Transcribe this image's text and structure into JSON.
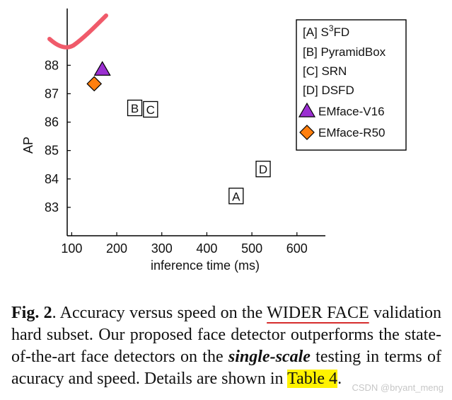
{
  "chart_data": {
    "type": "scatter",
    "xlabel": "inference time (ms)",
    "ylabel": "AP",
    "xlim": [
      90,
      660
    ],
    "ylim": [
      82.0,
      90.0
    ],
    "x_tick_positions": [
      100,
      200,
      300,
      400,
      500,
      600
    ],
    "x_tick_labels": [
      "100",
      "200",
      "300",
      "400",
      "500",
      "600"
    ],
    "y_tick_positions": [
      83,
      84,
      85,
      86,
      87,
      88
    ],
    "y_tick_labels": [
      "83",
      "84",
      "85",
      "86",
      "87",
      "88"
    ],
    "grid": false,
    "legend_position": "top-right",
    "points": [
      {
        "label": "A",
        "x": 465,
        "y": 83.4,
        "marker": "box"
      },
      {
        "label": "B",
        "x": 240,
        "y": 86.5,
        "marker": "box"
      },
      {
        "label": "C",
        "x": 275,
        "y": 86.45,
        "marker": "box"
      },
      {
        "label": "D",
        "x": 525,
        "y": 84.35,
        "marker": "box"
      },
      {
        "label": "",
        "x": 168,
        "y": 87.85,
        "marker": "triangle",
        "color": "#9b2fd1"
      },
      {
        "label": "",
        "x": 150,
        "y": 87.35,
        "marker": "diamond",
        "color": "#ff7f0e"
      }
    ],
    "legend": [
      {
        "text": "[A] S",
        "sup": "3",
        "text_after": "FD"
      },
      {
        "text": "[B] PyramidBox"
      },
      {
        "text": "[C] SRN"
      },
      {
        "text": "[D] DSFD"
      },
      {
        "text": "EMface-V16",
        "marker": "triangle",
        "color": "#9b2fd1"
      },
      {
        "text": "EMface-R50",
        "marker": "diamond",
        "color": "#ff7f0e"
      }
    ]
  },
  "caption": {
    "fig_label": "Fig. 2",
    "part1": ". Accuracy versus speed on the ",
    "underlined": "WIDER FACE",
    "part2": " validation hard subset. Our proposed face detector outperforms the state-of-the-art face detectors on the ",
    "emphasis": "single-scale",
    "part3": " testing in terms of acuracy and speed. Details are shown in ",
    "highlighted": "Table 4",
    "part4": "."
  },
  "watermark": "CSDN @bryant_meng",
  "colors": {
    "annotation_stroke": "#f05a6a",
    "highlight": "#fff200",
    "underline": "#d62d2d"
  }
}
